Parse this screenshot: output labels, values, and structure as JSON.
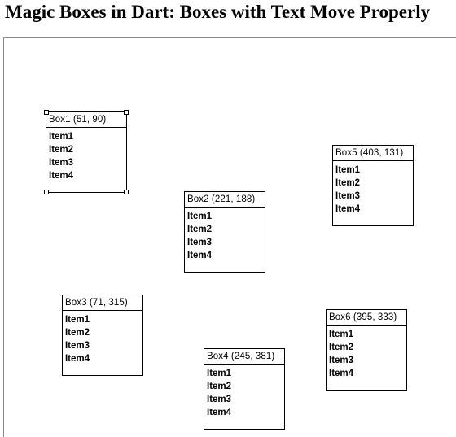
{
  "page": {
    "title": "Magic Boxes in Dart: Boxes with Text Move Properly"
  },
  "boxes": [
    {
      "label": "Box1 (51, 90)",
      "items": [
        "Item1",
        "Item2",
        "Item3",
        "Item4"
      ],
      "selected": true
    },
    {
      "label": "Box2 (221, 188)",
      "items": [
        "Item1",
        "Item2",
        "Item3",
        "Item4"
      ],
      "selected": false
    },
    {
      "label": "Box3 (71, 315)",
      "items": [
        "Item1",
        "Item2",
        "Item3",
        "Item4"
      ],
      "selected": false
    },
    {
      "label": "Box4 (245, 381)",
      "items": [
        "Item1",
        "Item2",
        "Item3",
        "Item4"
      ],
      "selected": false
    },
    {
      "label": "Box5 (403, 131)",
      "items": [
        "Item1",
        "Item2",
        "Item3",
        "Item4"
      ],
      "selected": false
    },
    {
      "label": "Box6 (395, 333)",
      "items": [
        "Item1",
        "Item2",
        "Item3",
        "Item4"
      ],
      "selected": false
    }
  ],
  "colors": {
    "box_border": "#000000",
    "canvas_border": "#8a8a8a",
    "background": "#ffffff"
  }
}
